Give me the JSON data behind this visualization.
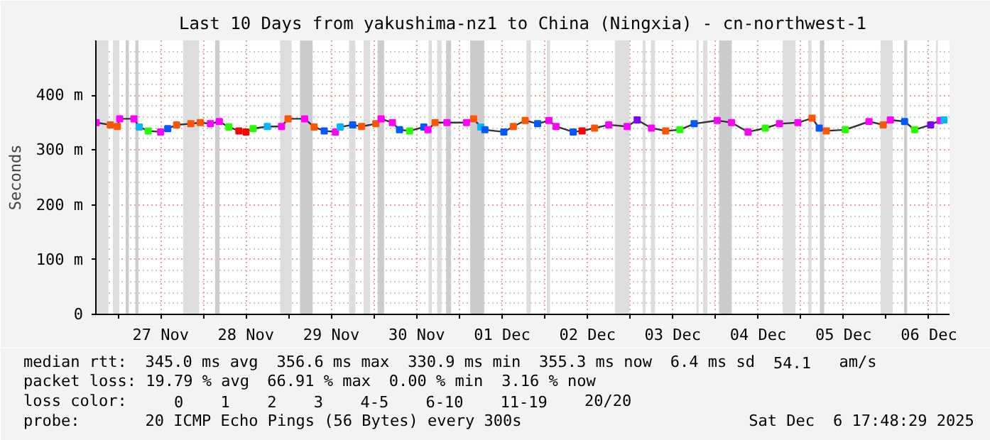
{
  "chart_data": {
    "type": "line",
    "title": "Last 10 Days from yakushima-nz1 to China (Ningxia) - cn-northwest-1",
    "ylabel": "Seconds",
    "xlim": [
      "2025-11-26T17:48",
      "2025-12-06T17:48"
    ],
    "xticks": [
      {
        "value": "2025-11-27T00:00",
        "label": null
      },
      {
        "value": "2025-11-27T12:00",
        "label": "27 Nov"
      },
      {
        "value": "2025-11-28T00:00",
        "label": null
      },
      {
        "value": "2025-11-28T12:00",
        "label": "28 Nov"
      },
      {
        "value": "2025-11-29T00:00",
        "label": null
      },
      {
        "value": "2025-11-29T12:00",
        "label": "29 Nov"
      },
      {
        "value": "2025-11-30T00:00",
        "label": null
      },
      {
        "value": "2025-11-30T12:00",
        "label": "30 Nov"
      },
      {
        "value": "2025-12-01T00:00",
        "label": null
      },
      {
        "value": "2025-12-01T12:00",
        "label": "01 Dec"
      },
      {
        "value": "2025-12-02T00:00",
        "label": null
      },
      {
        "value": "2025-12-02T12:00",
        "label": "02 Dec"
      },
      {
        "value": "2025-12-03T00:00",
        "label": null
      },
      {
        "value": "2025-12-03T12:00",
        "label": "03 Dec"
      },
      {
        "value": "2025-12-04T00:00",
        "label": null
      },
      {
        "value": "2025-12-04T12:00",
        "label": "04 Dec"
      },
      {
        "value": "2025-12-05T00:00",
        "label": null
      },
      {
        "value": "2025-12-05T12:00",
        "label": "05 Dec"
      },
      {
        "value": "2025-12-06T00:00",
        "label": null
      },
      {
        "value": "2025-12-06T12:00",
        "label": "06 Dec"
      }
    ],
    "ylim": [
      0,
      500
    ],
    "yticks": [
      0,
      {
        "value": 100,
        "label": "100 m"
      },
      {
        "value": 200,
        "label": "200 m"
      },
      {
        "value": 300,
        "label": "300 m"
      },
      {
        "value": 400,
        "label": "400 m"
      }
    ],
    "grid": true,
    "marker": "square",
    "line_style": "solid",
    "series": [
      {
        "color": "#333333",
        "x": [
          "2025-11-26T17:54",
          "2025-11-26T21:50",
          "2025-11-26T23:50",
          "2025-11-27T00:30",
          "2025-11-27T04:30",
          "2025-11-27T06:00",
          "2025-11-27T08:30",
          "2025-11-27T12:00",
          "2025-11-27T14:00",
          "2025-11-27T16:30",
          "2025-11-27T20:30",
          "2025-11-27T23:10",
          "2025-11-28T02:00",
          "2025-11-28T04:30",
          "2025-11-28T07:10",
          "2025-11-28T10:00",
          "2025-11-28T12:00",
          "2025-11-28T14:00",
          "2025-11-28T18:00",
          "2025-11-28T22:00",
          "2025-11-28T23:50",
          "2025-11-29T04:30",
          "2025-11-29T07:10",
          "2025-11-29T10:00",
          "2025-11-29T13:10",
          "2025-11-29T14:30",
          "2025-11-29T18:00",
          "2025-11-29T20:30",
          "2025-11-30T00:30",
          "2025-11-30T02:00",
          "2025-11-30T05:10",
          "2025-11-30T07:10",
          "2025-11-30T10:00",
          "2025-11-30T14:00",
          "2025-11-30T15:10",
          "2025-11-30T17:10",
          "2025-11-30T20:30",
          "2025-12-01T02:00",
          "2025-12-01T04:00",
          "2025-12-01T06:00",
          "2025-12-01T07:10",
          "2025-12-01T12:30",
          "2025-12-01T15:10",
          "2025-12-01T18:30",
          "2025-12-01T22:00",
          "2025-12-02T01:10",
          "2025-12-02T03:10",
          "2025-12-02T08:00",
          "2025-12-02T10:30",
          "2025-12-02T14:00",
          "2025-12-02T18:00",
          "2025-12-02T23:10",
          "2025-12-03T02:00",
          "2025-12-03T06:00",
          "2025-12-03T10:00",
          "2025-12-03T14:00",
          "2025-12-03T18:00",
          "2025-12-04T00:30",
          "2025-12-04T04:30",
          "2025-12-04T09:10",
          "2025-12-04T14:00",
          "2025-12-04T18:00",
          "2025-12-04T23:10",
          "2025-12-05T03:10",
          "2025-12-05T05:10",
          "2025-12-05T07:10",
          "2025-12-05T12:30",
          "2025-12-05T19:10",
          "2025-12-05T23:10",
          "2025-12-06T01:10",
          "2025-12-06T05:10",
          "2025-12-06T08:00",
          "2025-12-06T12:30",
          "2025-12-06T15:10",
          "2025-12-06T16:15"
        ],
        "values": [
          350,
          346,
          343,
          357,
          357,
          342,
          335,
          333,
          339,
          346,
          348,
          350,
          348,
          352,
          342,
          335,
          333,
          339,
          343,
          343,
          357,
          357,
          342,
          335,
          333,
          342,
          346,
          343,
          348,
          357,
          350,
          337,
          335,
          342,
          337,
          350,
          350,
          350,
          357,
          342,
          337,
          333,
          343,
          354,
          348,
          354,
          343,
          333,
          335,
          340,
          346,
          343,
          355,
          340,
          335,
          337,
          348,
          354,
          350,
          333,
          340,
          348,
          350,
          358,
          340,
          335,
          337,
          352,
          346,
          355,
          352,
          337,
          346,
          354,
          355
        ],
        "colors": [
          "#ff00ff",
          "#ff5500",
          "#ff5500",
          "#ff00ff",
          "#ff00ff",
          "#00b8ff",
          "#26ff00",
          "#ff00ff",
          "#0059ff",
          "#ff5500",
          "#ff5500",
          "#ff5500",
          "#ff00ff",
          "#ff00ff",
          "#26ff00",
          "#ff0000",
          "#ff0000",
          "#26ff00",
          "#00b8ff",
          "#ff00ff",
          "#ff5500",
          "#ff00ff",
          "#ff5500",
          "#0059ff",
          "#ff00ff",
          "#00b8ff",
          "#0059ff",
          "#ff5500",
          "#ff5500",
          "#ff00ff",
          "#ff00ff",
          "#0059ff",
          "#26ff00",
          "#0059ff",
          "#ff00ff",
          "#ff5500",
          "#ff00ff",
          "#ff00ff",
          "#ff5500",
          "#00b8ff",
          "#0059ff",
          "#0059ff",
          "#ff5500",
          "#ff5500",
          "#0059ff",
          "#ff00ff",
          "#ff00ff",
          "#0059ff",
          "#ff0000",
          "#ff5500",
          "#ff00ff",
          "#ff00ff",
          "#7e00ff",
          "#ff00ff",
          "#ff5500",
          "#26ff00",
          "#0059ff",
          "#ff00ff",
          "#ff00ff",
          "#ff00ff",
          "#26ff00",
          "#ff00ff",
          "#ff00ff",
          "#ff5500",
          "#0059ff",
          "#ff5500",
          "#26ff00",
          "#ff00ff",
          "#ff5500",
          "#ff00ff",
          "#0059ff",
          "#26ff00",
          "#7e00ff",
          "#ff00ff",
          "#00b8ff"
        ]
      }
    ],
    "bands": [
      {
        "axis": "x",
        "from": "2025-11-26T18:00",
        "to": "2025-11-26T21:20",
        "color": "#dddddd"
      },
      {
        "axis": "x",
        "from": "2025-11-26T22:36",
        "to": "2025-11-27T00:24",
        "color": "#dddddd"
      },
      {
        "axis": "x",
        "from": "2025-11-27T02:10",
        "to": "2025-11-27T03:05",
        "color": "#cccccc"
      },
      {
        "axis": "x",
        "from": "2025-11-27T04:55",
        "to": "2025-11-27T05:45",
        "color": "#cccccc"
      },
      {
        "axis": "x",
        "from": "2025-11-27T18:20",
        "to": "2025-11-27T22:50",
        "color": "#dddddd"
      },
      {
        "axis": "x",
        "from": "2025-11-28T03:20",
        "to": "2025-11-28T04:35",
        "color": "#cccccc"
      },
      {
        "axis": "x",
        "from": "2025-11-28T21:35",
        "to": "2025-11-29T00:50",
        "color": "#dddddd"
      },
      {
        "axis": "x",
        "from": "2025-11-29T03:10",
        "to": "2025-11-29T06:45",
        "color": "#cccccc"
      },
      {
        "axis": "x",
        "from": "2025-11-29T17:00",
        "to": "2025-11-29T18:45",
        "color": "#dddddd"
      },
      {
        "axis": "x",
        "from": "2025-11-29T21:05",
        "to": "2025-11-29T22:55",
        "color": "#dddddd"
      },
      {
        "axis": "x",
        "from": "2025-11-30T01:00",
        "to": "2025-11-30T02:50",
        "color": "#cccccc"
      },
      {
        "axis": "x",
        "from": "2025-11-30T15:20",
        "to": "2025-11-30T16:15",
        "color": "#dddddd"
      },
      {
        "axis": "x",
        "from": "2025-11-30T17:45",
        "to": "2025-11-30T19:00",
        "color": "#dddddd"
      },
      {
        "axis": "x",
        "from": "2025-11-30T20:15",
        "to": "2025-11-30T21:40",
        "color": "#cccccc"
      },
      {
        "axis": "x",
        "from": "2025-12-01T03:00",
        "to": "2025-12-01T07:00",
        "color": "#cccccc"
      },
      {
        "axis": "x",
        "from": "2025-12-01T18:50",
        "to": "2025-12-01T20:05",
        "color": "#dddddd"
      },
      {
        "axis": "x",
        "from": "2025-12-02T00:35",
        "to": "2025-12-02T01:30",
        "color": "#dddddd"
      },
      {
        "axis": "x",
        "from": "2025-12-02T19:45",
        "to": "2025-12-02T23:50",
        "color": "#dddddd"
      },
      {
        "axis": "x",
        "from": "2025-12-03T03:30",
        "to": "2025-12-03T04:20",
        "color": "#dddddd"
      },
      {
        "axis": "x",
        "from": "2025-12-03T05:50",
        "to": "2025-12-03T07:00",
        "color": "#dddddd"
      },
      {
        "axis": "x",
        "from": "2025-12-03T18:40",
        "to": "2025-12-03T19:15",
        "color": "#dddddd"
      },
      {
        "axis": "x",
        "from": "2025-12-03T20:30",
        "to": "2025-12-03T21:45",
        "color": "#dddddd"
      },
      {
        "axis": "x",
        "from": "2025-12-04T01:00",
        "to": "2025-12-04T04:35",
        "color": "#cccccc"
      },
      {
        "axis": "x",
        "from": "2025-12-04T18:55",
        "to": "2025-12-04T22:30",
        "color": "#dddddd"
      },
      {
        "axis": "x",
        "from": "2025-12-05T02:05",
        "to": "2025-12-05T03:00",
        "color": "#dddddd"
      },
      {
        "axis": "x",
        "from": "2025-12-05T05:20",
        "to": "2025-12-05T06:35",
        "color": "#cccccc"
      },
      {
        "axis": "x",
        "from": "2025-12-05T22:25",
        "to": "2025-12-06T01:50",
        "color": "#dddddd"
      },
      {
        "axis": "x",
        "from": "2025-12-06T05:00",
        "to": "2025-12-06T05:55",
        "color": "#cccccc"
      },
      {
        "axis": "x",
        "from": "2025-12-06T14:00",
        "to": "2025-12-06T14:30",
        "color": "#dddddd"
      }
    ],
    "annotations": [
      "median rtt:  345.0 ms avg  356.6 ms max  330.9 ms min  355.3 ms now  6.4 ms sd  54.1   am/s",
      "packet loss: 19.79 % avg  66.91 % max  0.00 % min  3.16 % now",
      "loss color:",
      "0",
      "1",
      "2",
      "3",
      "4-5",
      "6-10",
      "11-19",
      "20/20",
      "probe:       20 ICMP Echo Pings (56 Bytes) every 300s",
      "Sat Dec  6 17:48:29 2025"
    ]
  }
}
